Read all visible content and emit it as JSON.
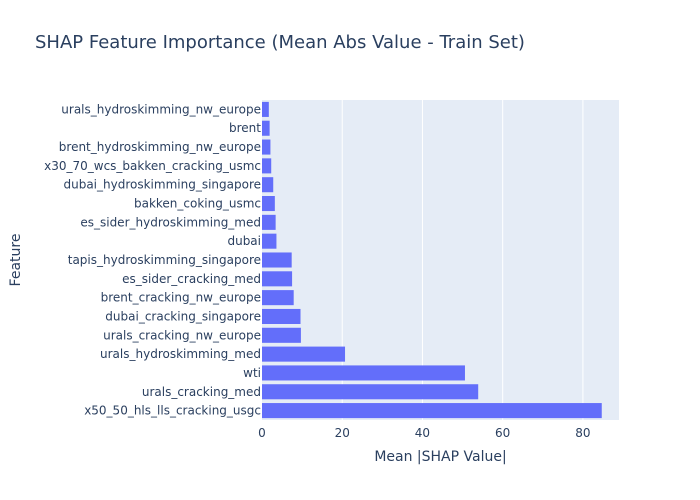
{
  "chart_data": {
    "type": "bar",
    "orientation": "horizontal",
    "title": "SHAP Feature Importance (Mean Abs Value - Train Set)",
    "xlabel": "Mean |SHAP Value|",
    "ylabel": "Feature",
    "xlim": [
      0,
      89
    ],
    "xticks": [
      0,
      20,
      40,
      60,
      80
    ],
    "grid": true,
    "bar_color": "#636efa",
    "plot_bg": "#e5ecf6",
    "categories": [
      "urals_hydroskimming_nw_europe",
      "brent",
      "brent_hydroskimming_nw_europe",
      "x30_70_wcs_bakken_cracking_usmc",
      "dubai_hydroskimming_singapore",
      "bakken_coking_usmc",
      "es_sider_hydroskimming_med",
      "dubai",
      "tapis_hydroskimming_singapore",
      "es_sider_cracking_med",
      "brent_cracking_nw_europe",
      "dubai_cracking_singapore",
      "urals_cracking_nw_europe",
      "urals_hydroskimming_med",
      "wti",
      "urals_cracking_med",
      "x50_50_hls_lls_cracking_usgc"
    ],
    "values": [
      1.7,
      1.9,
      2.1,
      2.3,
      2.8,
      3.2,
      3.4,
      3.6,
      7.4,
      7.5,
      7.9,
      9.6,
      9.7,
      20.7,
      50.6,
      53.9,
      84.7
    ]
  }
}
